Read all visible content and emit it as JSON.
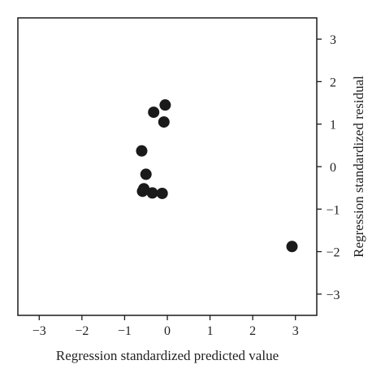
{
  "chart_data": {
    "type": "scatter",
    "title": "",
    "xlabel": "Regression standardized predicted value",
    "ylabel": "Regression standardized residual",
    "xlim": [
      -3.5,
      3.5
    ],
    "ylim": [
      -3.5,
      3.5
    ],
    "x_ticks": [
      -3,
      -2,
      -1,
      0,
      1,
      2,
      3
    ],
    "y_ticks": [
      -3,
      -2,
      -1,
      0,
      1,
      2,
      3
    ],
    "x_tick_labels": [
      "−3",
      "−2",
      "−1",
      "0",
      "1",
      "2",
      "3"
    ],
    "y_tick_labels": [
      "−3",
      "−2",
      "−1",
      "0",
      "1",
      "2",
      "3"
    ],
    "y_axis_side": "right",
    "grid": false,
    "legend": "none",
    "marker_color": "#1a1a1a",
    "series": [
      {
        "points": [
          {
            "x": -0.05,
            "y": 1.45
          },
          {
            "x": -0.32,
            "y": 1.28
          },
          {
            "x": -0.08,
            "y": 1.05
          },
          {
            "x": -0.6,
            "y": 0.37
          },
          {
            "x": -0.5,
            "y": -0.18
          },
          {
            "x": -0.55,
            "y": -0.52
          },
          {
            "x": -0.58,
            "y": -0.58
          },
          {
            "x": -0.35,
            "y": -0.62
          },
          {
            "x": -0.12,
            "y": -0.63
          },
          {
            "x": 2.92,
            "y": -1.88
          }
        ]
      }
    ]
  }
}
